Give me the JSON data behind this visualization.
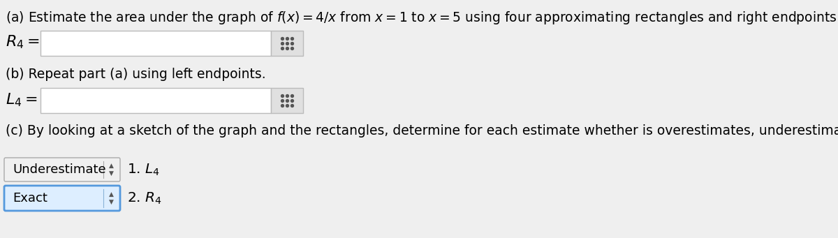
{
  "background_color": "#efefef",
  "text_color": "#000000",
  "line_a": "(a) Estimate the area under the graph of $f(x) = 4/x$ from $x = 1$ to $x = 5$ using four approximating rectangles and right endpoints.",
  "label_R4": "$R_4 =$",
  "label_L4": "$L_4 =$",
  "line_b": "(b) Repeat part (a) using left endpoints.",
  "line_c": "(c) By looking at a sketch of the graph and the rectangles, determine for each estimate whether is overestimates, underestimates, or is the exact area.",
  "dropdown_1_text": "Underestimate",
  "dropdown_1_bg": "#f0f0f0",
  "dropdown_1_border": "#aaaaaa",
  "label_1": "1. $L_4$",
  "dropdown_2_text": "Exact",
  "dropdown_2_bg": "#ddeeff",
  "dropdown_2_border": "#5599dd",
  "label_2": "2. $R_4$",
  "font_size_main": 13.5,
  "font_size_math": 16,
  "input_box_color": "#ffffff",
  "input_box_border": "#bbbbbb",
  "grid_btn_color": "#e0e0e0",
  "grid_btn_border": "#bbbbbb",
  "grid_dot_color": "#555555"
}
